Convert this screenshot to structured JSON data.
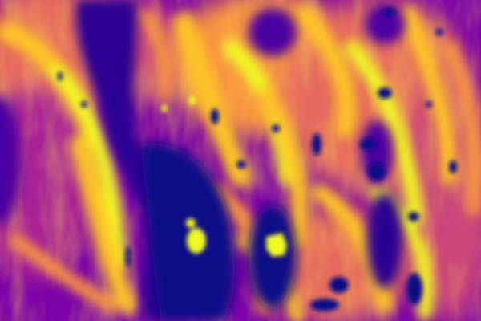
{
  "image": {
    "colormap": "plasma",
    "colors": {
      "deep": "#0d0887",
      "violet": "#4b03a1",
      "purple": "#7d03a8",
      "magenta": "#a82296",
      "pink": "#cb4679",
      "orange": "#e56b5d",
      "amber": "#f89441",
      "gold": "#fdc328",
      "yellow": "#f0f921"
    }
  }
}
